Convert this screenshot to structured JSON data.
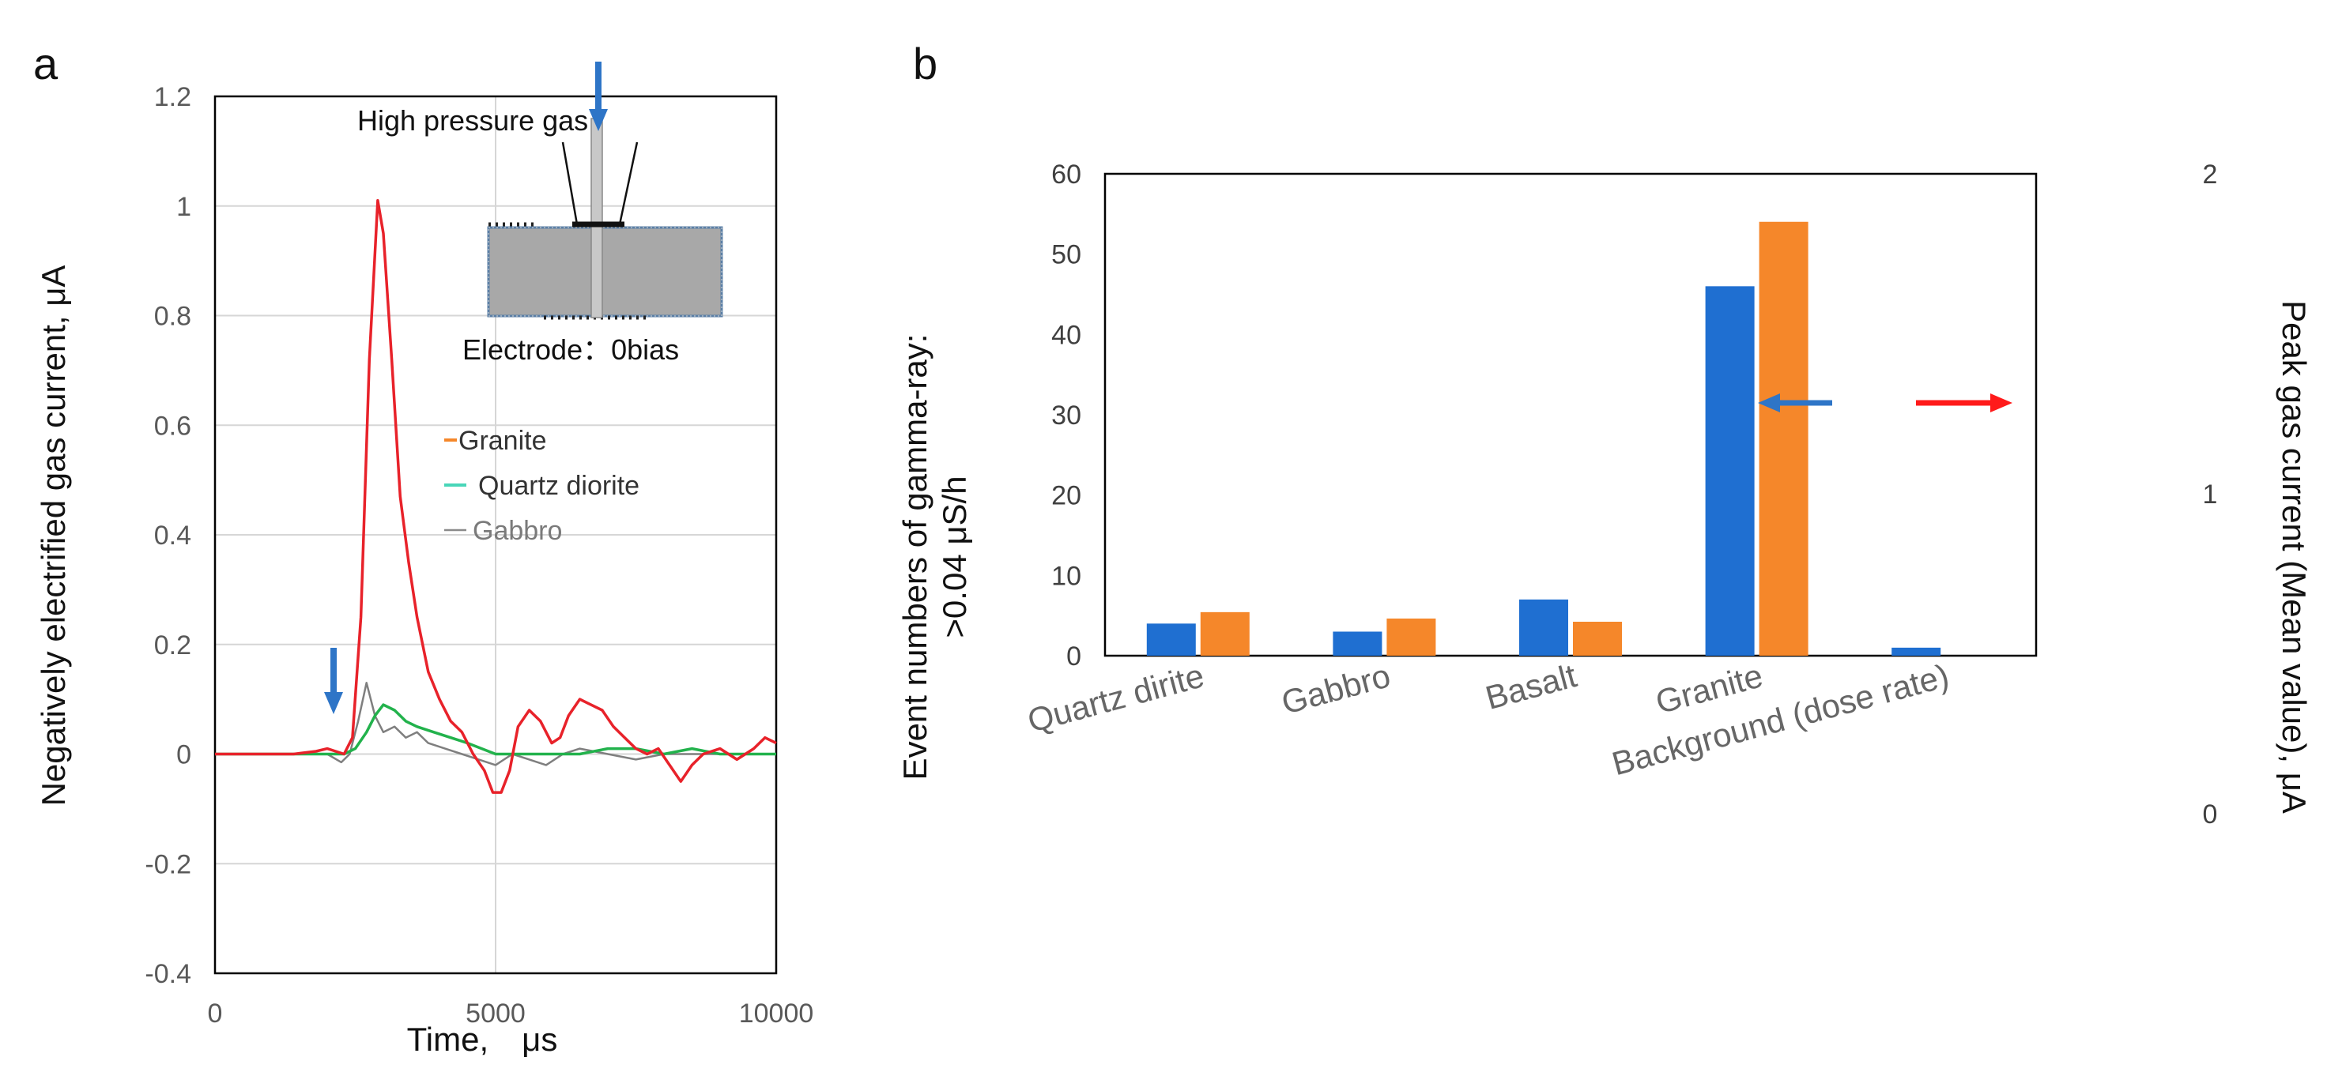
{
  "chart_data": [
    {
      "panel": "a",
      "type": "line",
      "xlabel": "Time,　μs",
      "ylabel": "Negatively electrified  gas current, μA",
      "xlim": [
        0,
        10000
      ],
      "ylim": [
        -0.4,
        1.2
      ],
      "xticks": [
        "0",
        "5000",
        "10000"
      ],
      "yticks": [
        "1.2",
        "1",
        "0.8",
        "0.6",
        "0.4",
        "0.2",
        "0",
        "-0.2",
        "-0.4"
      ],
      "inset_title": "High pressure gas",
      "inset_caption": "Electrode：0bias",
      "series": [
        {
          "name": "Granite",
          "color": "#e8222a",
          "x": [
            0,
            1400,
            1800,
            2000,
            2150,
            2300,
            2450,
            2600,
            2750,
            2900,
            3000,
            3150,
            3300,
            3450,
            3600,
            3800,
            4000,
            4200,
            4400,
            4600,
            4800,
            4950,
            5100,
            5250,
            5400,
            5600,
            5800,
            6000,
            6150,
            6300,
            6500,
            6700,
            6900,
            7100,
            7300,
            7500,
            7700,
            7900,
            8100,
            8300,
            8500,
            8700,
            9000,
            9300,
            9600,
            9800,
            10000
          ],
          "y": [
            0.0,
            0.0,
            0.005,
            0.01,
            0.005,
            0.0,
            0.03,
            0.25,
            0.72,
            1.01,
            0.95,
            0.72,
            0.47,
            0.35,
            0.25,
            0.15,
            0.1,
            0.06,
            0.04,
            0.0,
            -0.03,
            -0.07,
            -0.07,
            -0.03,
            0.05,
            0.08,
            0.06,
            0.02,
            0.03,
            0.07,
            0.1,
            0.09,
            0.08,
            0.05,
            0.03,
            0.01,
            0.0,
            0.01,
            -0.02,
            -0.05,
            -0.02,
            0.0,
            0.01,
            -0.01,
            0.01,
            0.03,
            0.02
          ]
        },
        {
          "name": "Quartz diorite",
          "color": "#22b24c",
          "x": [
            0,
            2000,
            2300,
            2500,
            2700,
            2850,
            3000,
            3200,
            3400,
            3600,
            3900,
            4200,
            4500,
            5000,
            5500,
            6000,
            6500,
            7000,
            7500,
            8000,
            8500,
            9000,
            10000
          ],
          "y": [
            0.0,
            0.0,
            0.0,
            0.01,
            0.04,
            0.07,
            0.09,
            0.08,
            0.06,
            0.05,
            0.04,
            0.03,
            0.02,
            0.0,
            0.0,
            0.0,
            0.0,
            0.01,
            0.01,
            0.0,
            0.01,
            0.0,
            0.0
          ]
        },
        {
          "name": "Gabbro",
          "color": "#7f7f7f",
          "x": [
            0,
            2000,
            2250,
            2400,
            2550,
            2700,
            2850,
            3000,
            3200,
            3400,
            3600,
            3800,
            4100,
            4400,
            4700,
            5000,
            5300,
            5600,
            5900,
            6200,
            6500,
            7000,
            7500,
            8000,
            8500,
            9000,
            10000
          ],
          "y": [
            0.0,
            0.0,
            -0.015,
            0.0,
            0.06,
            0.13,
            0.07,
            0.04,
            0.05,
            0.03,
            0.04,
            0.02,
            0.01,
            0.0,
            -0.01,
            -0.02,
            0.0,
            -0.01,
            -0.02,
            0.0,
            0.01,
            0.0,
            -0.01,
            0.0,
            0.0,
            0.0,
            0.0
          ]
        }
      ],
      "legend": [
        {
          "label": "Granite",
          "color": "#f5872a"
        },
        {
          "label": "Quartz diorite",
          "color": "#48d6b8"
        },
        {
          "label": "Gabbro",
          "color": "#8a8a8a"
        }
      ]
    },
    {
      "panel": "b",
      "type": "bar",
      "categories": [
        "Quartz dirite",
        "Gabbro",
        "Basalt",
        "Granite",
        "Background (dose rate)"
      ],
      "ylabel_left_line1": "Event numbers of gamma-ray:",
      "ylabel_left_line2": ">0.04 μS/h",
      "ylabel_right": "Peak gas current (Mean value), μA",
      "ylim_left": [
        0,
        60
      ],
      "yticks_left": [
        "60",
        "50",
        "40",
        "30",
        "20",
        "10",
        "0"
      ],
      "ylim_right": [
        0,
        2
      ],
      "yticks_right": [
        "2",
        "1",
        "0"
      ],
      "series": [
        {
          "name": "Event numbers of gamma-ray",
          "axis": "left",
          "color": "#1f6fd1",
          "values": [
            4,
            3,
            7,
            46,
            1
          ]
        },
        {
          "name": "Peak gas current (Mean value)",
          "axis": "right",
          "color": "#f5872a",
          "values": [
            0.63,
            0.61,
            0.6,
            1.85,
            null
          ]
        }
      ]
    }
  ]
}
